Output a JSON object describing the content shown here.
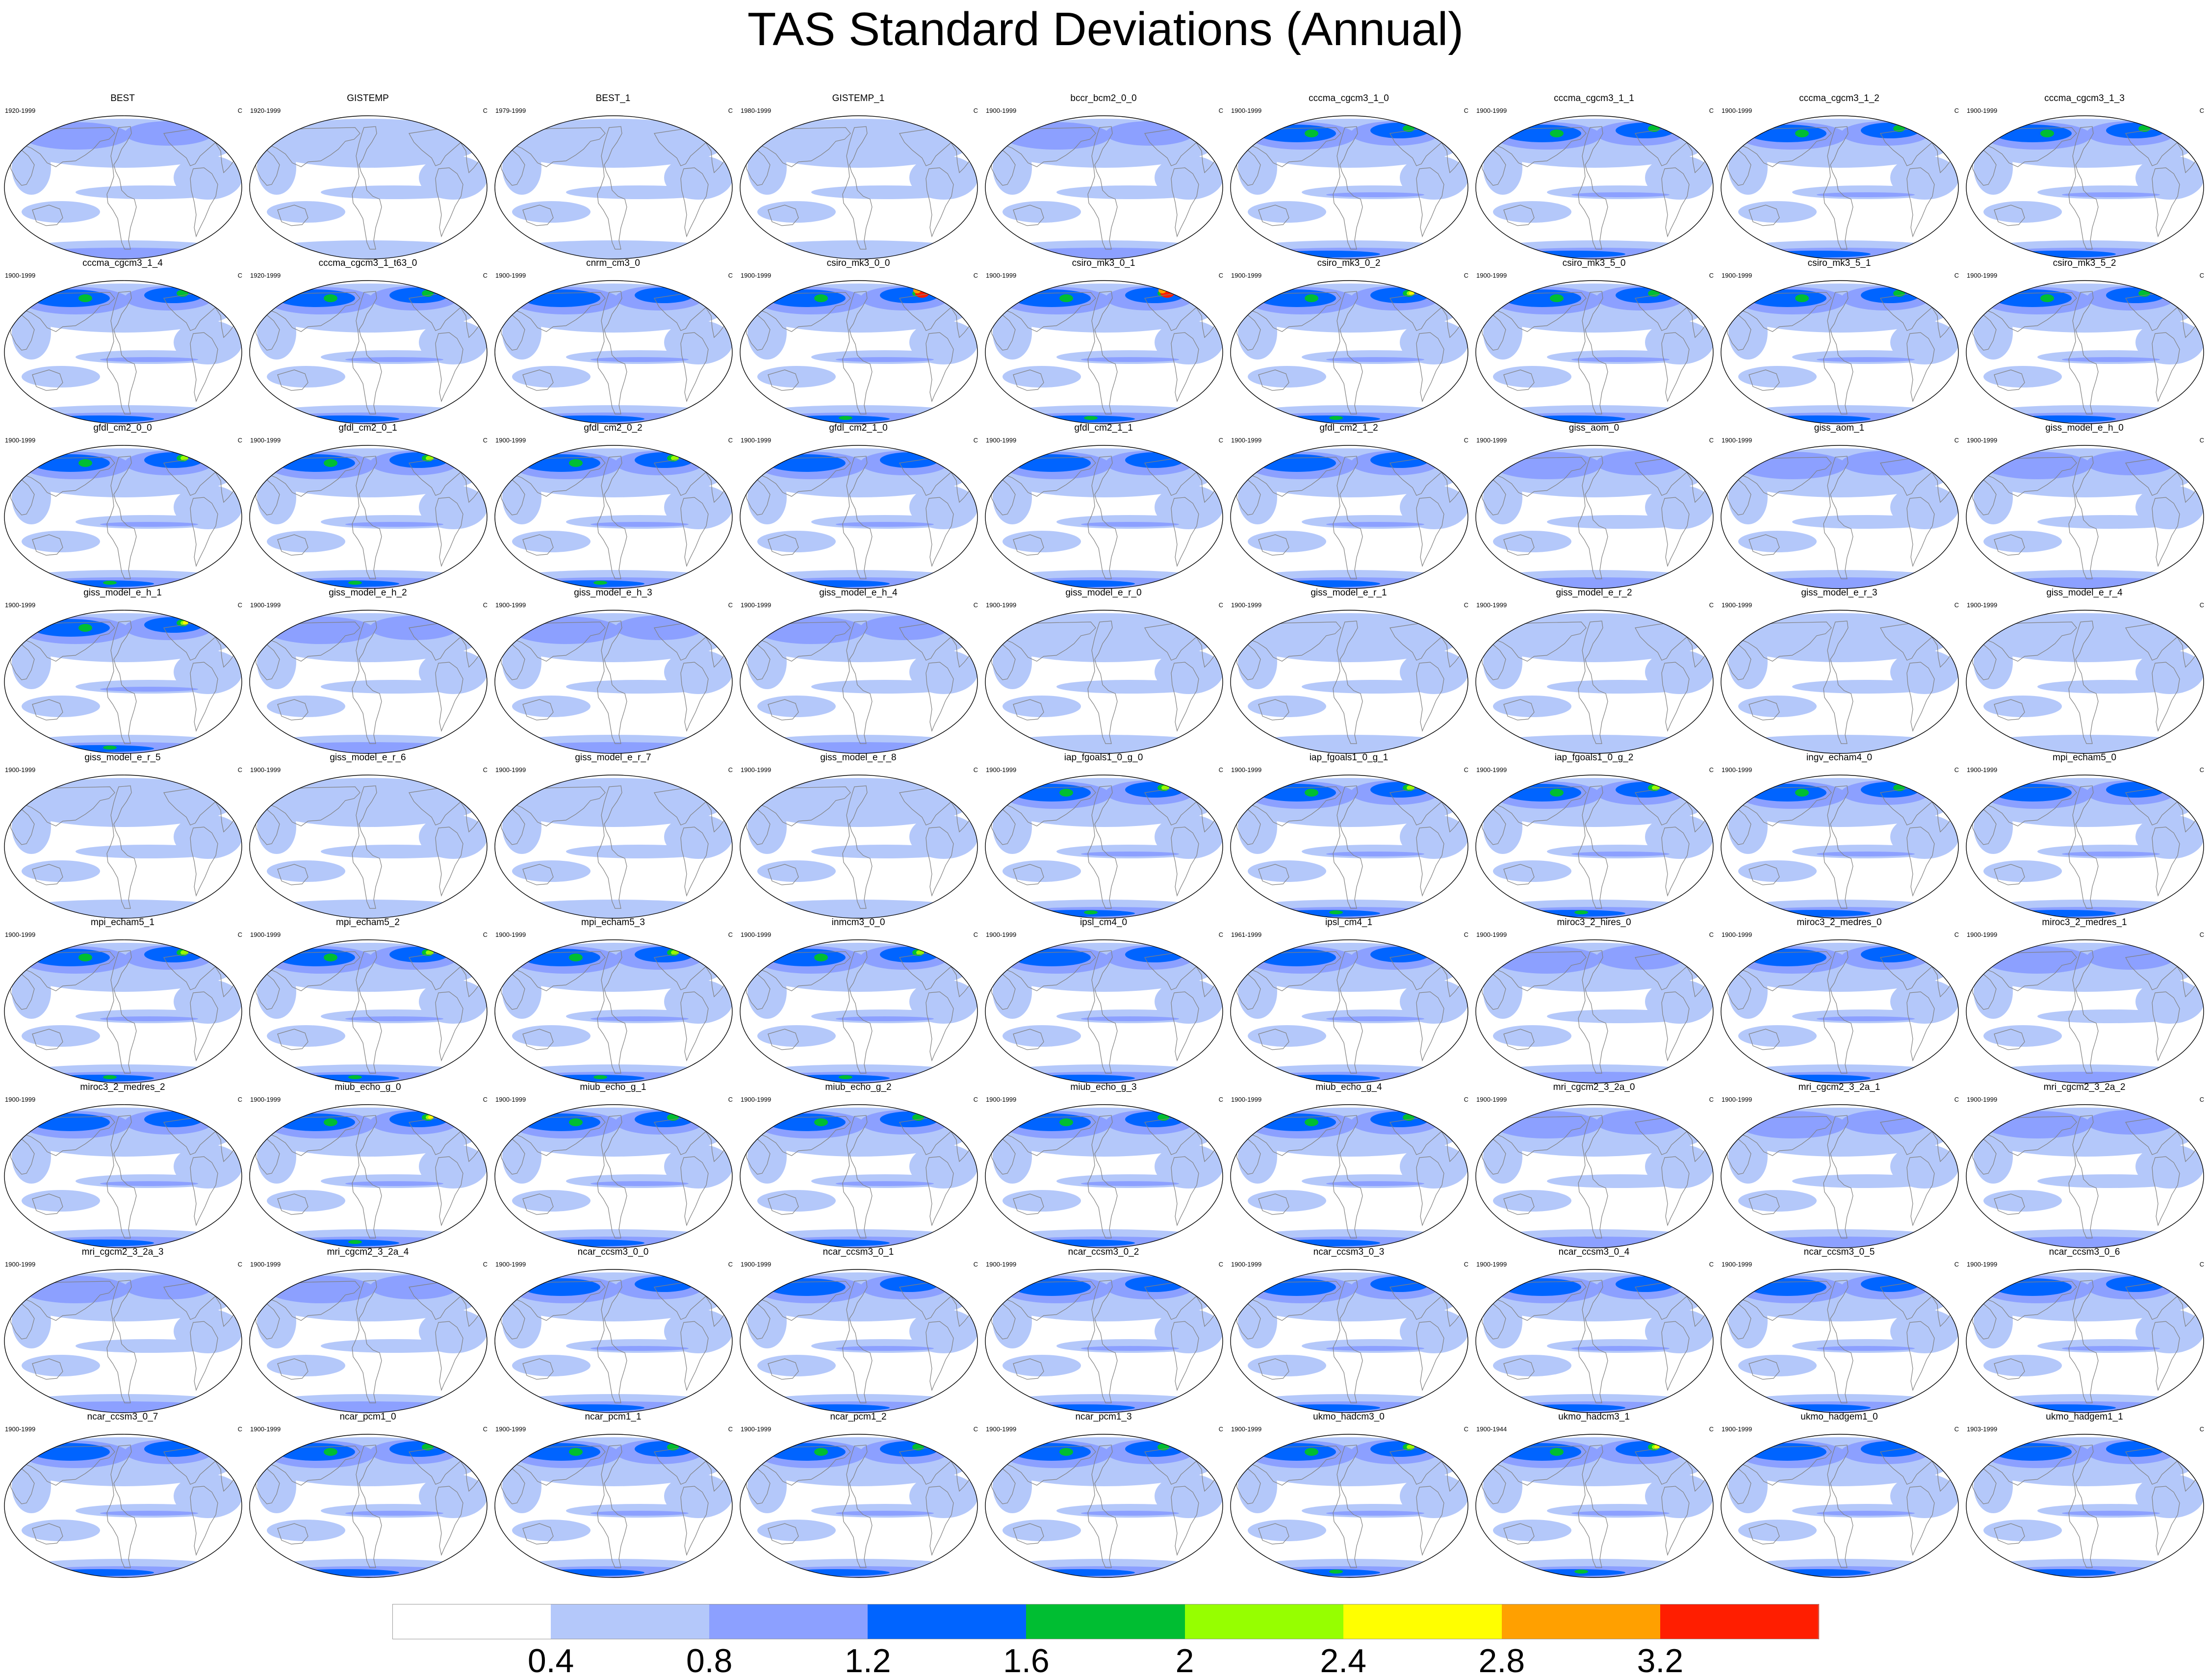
{
  "title": "TAS Standard Deviations (Annual)",
  "units": "C",
  "panels": [
    {
      "name": "BEST",
      "period": "1920-1999",
      "intensity": 0.35
    },
    {
      "name": "GISTEMP",
      "period": "1920-1999",
      "intensity": 0.25
    },
    {
      "name": "BEST_1",
      "period": "1979-1999",
      "intensity": 0.3
    },
    {
      "name": "GISTEMP_1",
      "period": "1980-1999",
      "intensity": 0.25
    },
    {
      "name": "bccr_bcm2_0_0",
      "period": "1900-1999",
      "intensity": 0.45
    },
    {
      "name": "cccma_cgcm3_1_0",
      "period": "1900-1999",
      "intensity": 0.6
    },
    {
      "name": "cccma_cgcm3_1_1",
      "period": "1900-1999",
      "intensity": 0.6
    },
    {
      "name": "cccma_cgcm3_1_2",
      "period": "1900-1999",
      "intensity": 0.6
    },
    {
      "name": "cccma_cgcm3_1_3",
      "period": "1900-1999",
      "intensity": 0.6
    },
    {
      "name": "cccma_cgcm3_1_4",
      "period": "1900-1999",
      "intensity": 0.65
    },
    {
      "name": "cccma_cgcm3_1_t63_0",
      "period": "1920-1999",
      "intensity": 0.65
    },
    {
      "name": "cnrm_cm3_0",
      "period": "1900-1999",
      "intensity": 0.55
    },
    {
      "name": "csiro_mk3_0_0",
      "period": "1900-1999",
      "intensity": 0.95
    },
    {
      "name": "csiro_mk3_0_1",
      "period": "1900-1999",
      "intensity": 1.0
    },
    {
      "name": "csiro_mk3_0_2",
      "period": "1900-1999",
      "intensity": 0.75
    },
    {
      "name": "csiro_mk3_5_0",
      "period": "1900-1999",
      "intensity": 0.65
    },
    {
      "name": "csiro_mk3_5_1",
      "period": "1900-1999",
      "intensity": 0.65
    },
    {
      "name": "csiro_mk3_5_2",
      "period": "1900-1999",
      "intensity": 0.65
    },
    {
      "name": "gfdl_cm2_0_0",
      "period": "1900-1999",
      "intensity": 0.7
    },
    {
      "name": "gfdl_cm2_0_1",
      "period": "1900-1999",
      "intensity": 0.7
    },
    {
      "name": "gfdl_cm2_0_2",
      "period": "1900-1999",
      "intensity": 0.7
    },
    {
      "name": "gfdl_cm2_1_0",
      "period": "1900-1999",
      "intensity": 0.55
    },
    {
      "name": "gfdl_cm2_1_1",
      "period": "1900-1999",
      "intensity": 0.55
    },
    {
      "name": "gfdl_cm2_1_2",
      "period": "1900-1999",
      "intensity": 0.55
    },
    {
      "name": "giss_aom_0",
      "period": "1900-1999",
      "intensity": 0.4
    },
    {
      "name": "giss_aom_1",
      "period": "1900-1999",
      "intensity": 0.4
    },
    {
      "name": "giss_model_e_h_0",
      "period": "1900-1999",
      "intensity": 0.4
    },
    {
      "name": "giss_model_e_h_1",
      "period": "1900-1999",
      "intensity": 0.75
    },
    {
      "name": "giss_model_e_h_2",
      "period": "1900-1999",
      "intensity": 0.4
    },
    {
      "name": "giss_model_e_h_3",
      "period": "1900-1999",
      "intensity": 0.4
    },
    {
      "name": "giss_model_e_h_4",
      "period": "1900-1999",
      "intensity": 0.4
    },
    {
      "name": "giss_model_e_r_0",
      "period": "1900-1999",
      "intensity": 0.3
    },
    {
      "name": "giss_model_e_r_1",
      "period": "1900-1999",
      "intensity": 0.3
    },
    {
      "name": "giss_model_e_r_2",
      "period": "1900-1999",
      "intensity": 0.3
    },
    {
      "name": "giss_model_e_r_3",
      "period": "1900-1999",
      "intensity": 0.3
    },
    {
      "name": "giss_model_e_r_4",
      "period": "1900-1999",
      "intensity": 0.3
    },
    {
      "name": "giss_model_e_r_5",
      "period": "1900-1999",
      "intensity": 0.3
    },
    {
      "name": "giss_model_e_r_6",
      "period": "1900-1999",
      "intensity": 0.3
    },
    {
      "name": "giss_model_e_r_7",
      "period": "1900-1999",
      "intensity": 0.3
    },
    {
      "name": "giss_model_e_r_8",
      "period": "1900-1999",
      "intensity": 0.3
    },
    {
      "name": "iap_fgoals1_0_g_0",
      "period": "1900-1999",
      "intensity": 0.7
    },
    {
      "name": "iap_fgoals1_0_g_1",
      "period": "1900-1999",
      "intensity": 0.7
    },
    {
      "name": "iap_fgoals1_0_g_2",
      "period": "1900-1999",
      "intensity": 0.7
    },
    {
      "name": "ingv_echam4_0",
      "period": "1900-1999",
      "intensity": 0.6
    },
    {
      "name": "mpi_echam5_0",
      "period": "1900-1999",
      "intensity": 0.55
    },
    {
      "name": "mpi_echam5_1",
      "period": "1900-1999",
      "intensity": 0.7
    },
    {
      "name": "mpi_echam5_2",
      "period": "1900-1999",
      "intensity": 0.7
    },
    {
      "name": "mpi_echam5_3",
      "period": "1900-1999",
      "intensity": 0.7
    },
    {
      "name": "inmcm3_0_0",
      "period": "1900-1999",
      "intensity": 0.7
    },
    {
      "name": "ipsl_cm4_0",
      "period": "1900-1999",
      "intensity": 0.5
    },
    {
      "name": "ipsl_cm4_1",
      "period": "1961-1999",
      "intensity": 0.5
    },
    {
      "name": "miroc3_2_hires_0",
      "period": "1900-1999",
      "intensity": 0.45
    },
    {
      "name": "miroc3_2_medres_0",
      "period": "1900-1999",
      "intensity": 0.55
    },
    {
      "name": "miroc3_2_medres_1",
      "period": "1900-1999",
      "intensity": 0.45
    },
    {
      "name": "miroc3_2_medres_2",
      "period": "1900-1999",
      "intensity": 0.5
    },
    {
      "name": "miub_echo_g_0",
      "period": "1900-1999",
      "intensity": 0.75
    },
    {
      "name": "miub_echo_g_1",
      "period": "1900-1999",
      "intensity": 0.65
    },
    {
      "name": "miub_echo_g_2",
      "period": "1900-1999",
      "intensity": 0.65
    },
    {
      "name": "miub_echo_g_3",
      "period": "1900-1999",
      "intensity": 0.65
    },
    {
      "name": "miub_echo_g_4",
      "period": "1900-1999",
      "intensity": 0.65
    },
    {
      "name": "mri_cgcm2_3_2a_0",
      "period": "1900-1999",
      "intensity": 0.4
    },
    {
      "name": "mri_cgcm2_3_2a_1",
      "period": "1900-1999",
      "intensity": 0.4
    },
    {
      "name": "mri_cgcm2_3_2a_2",
      "period": "1900-1999",
      "intensity": 0.4
    },
    {
      "name": "mri_cgcm2_3_2a_3",
      "period": "1900-1999",
      "intensity": 0.45
    },
    {
      "name": "mri_cgcm2_3_2a_4",
      "period": "1900-1999",
      "intensity": 0.45
    },
    {
      "name": "ncar_ccsm3_0_0",
      "period": "1900-1999",
      "intensity": 0.55
    },
    {
      "name": "ncar_ccsm3_0_1",
      "period": "1900-1999",
      "intensity": 0.55
    },
    {
      "name": "ncar_ccsm3_0_2",
      "period": "1900-1999",
      "intensity": 0.55
    },
    {
      "name": "ncar_ccsm3_0_3",
      "period": "1900-1999",
      "intensity": 0.55
    },
    {
      "name": "ncar_ccsm3_0_4",
      "period": "1900-1999",
      "intensity": 0.55
    },
    {
      "name": "ncar_ccsm3_0_5",
      "period": "1900-1999",
      "intensity": 0.55
    },
    {
      "name": "ncar_ccsm3_0_6",
      "period": "1900-1999",
      "intensity": 0.55
    },
    {
      "name": "ncar_ccsm3_0_7",
      "period": "1900-1999",
      "intensity": 0.5
    },
    {
      "name": "ncar_pcm1_0",
      "period": "1900-1999",
      "intensity": 0.6
    },
    {
      "name": "ncar_pcm1_1",
      "period": "1900-1999",
      "intensity": 0.6
    },
    {
      "name": "ncar_pcm1_2",
      "period": "1900-1999",
      "intensity": 0.6
    },
    {
      "name": "ncar_pcm1_3",
      "period": "1900-1999",
      "intensity": 0.6
    },
    {
      "name": "ukmo_hadcm3_0",
      "period": "1900-1999",
      "intensity": 0.7
    },
    {
      "name": "ukmo_hadcm3_1",
      "period": "1900-1944",
      "intensity": 0.75
    },
    {
      "name": "ukmo_hadgem1_0",
      "period": "1900-1999",
      "intensity": 0.5
    },
    {
      "name": "ukmo_hadgem1_1",
      "period": "1903-1999",
      "intensity": 0.5
    }
  ],
  "colorbar": {
    "colors": [
      "#ffffff",
      "#b4c8fa",
      "#8ca0ff",
      "#0064ff",
      "#00be32",
      "#96ff00",
      "#ffff00",
      "#ffa000",
      "#ff1e00"
    ],
    "labels": [
      "0.4",
      "0.8",
      "1.2",
      "1.6",
      "2",
      "2.4",
      "2.8",
      "3.2"
    ]
  }
}
